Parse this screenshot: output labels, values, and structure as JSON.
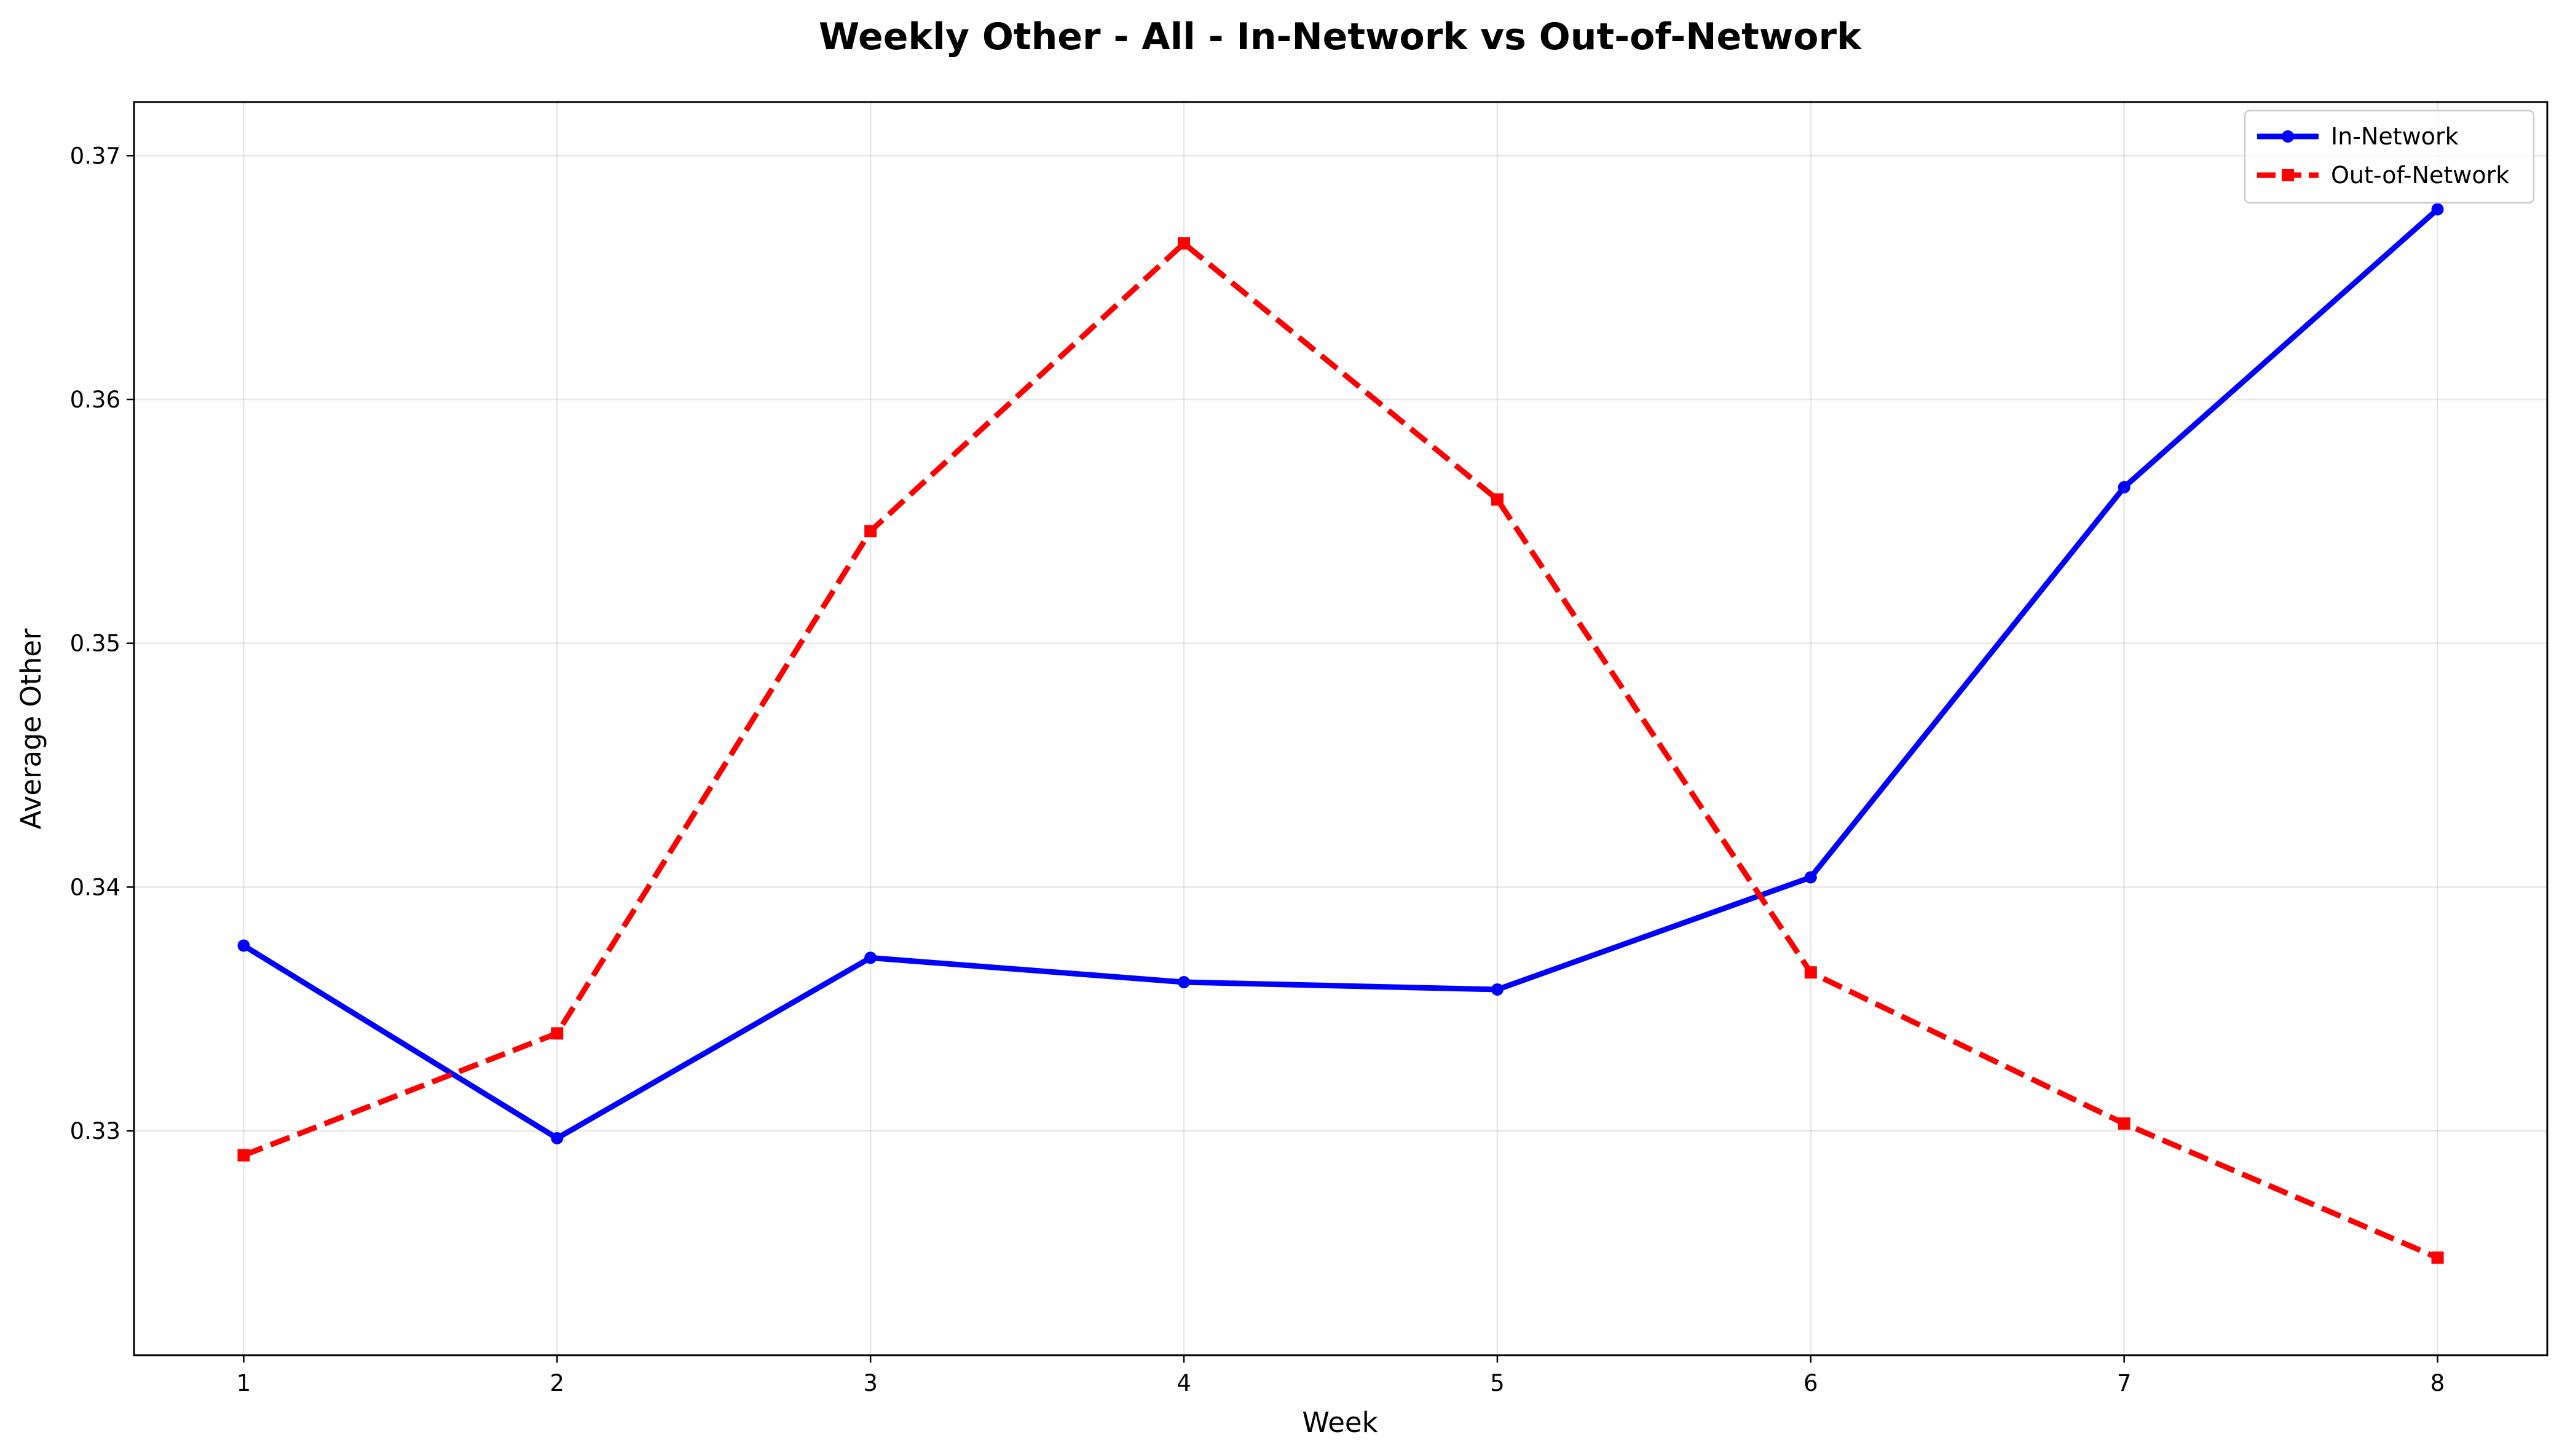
{
  "chart_data": {
    "type": "line",
    "title": "Weekly Other - All - In-Network vs Out-of-Network",
    "xlabel": "Week",
    "ylabel": "Average Other",
    "x": [
      1,
      2,
      3,
      4,
      5,
      6,
      7,
      8
    ],
    "xlim": [
      0.65,
      8.35
    ],
    "ylim": [
      0.3208,
      0.3722
    ],
    "yticks": [
      0.33,
      0.34,
      0.35,
      0.36,
      0.37
    ],
    "ytick_labels": [
      "0.33",
      "0.34",
      "0.35",
      "0.36",
      "0.37"
    ],
    "xtick_labels": [
      "1",
      "2",
      "3",
      "4",
      "5",
      "6",
      "7",
      "8"
    ],
    "grid": true,
    "legend_position": "top-right",
    "series": [
      {
        "name": "In-Network",
        "color": "#0000ff",
        "line_style": "solid",
        "marker": "circle",
        "values": [
          0.3376,
          0.3297,
          0.3371,
          0.3361,
          0.3358,
          0.3404,
          0.3564,
          0.3678
        ]
      },
      {
        "name": "Out-of-Network",
        "color": "#ff0000",
        "line_style": "dashed",
        "marker": "square",
        "values": [
          0.329,
          0.334,
          0.3546,
          0.3664,
          0.3559,
          0.3365,
          0.3303,
          0.3248
        ]
      }
    ]
  }
}
